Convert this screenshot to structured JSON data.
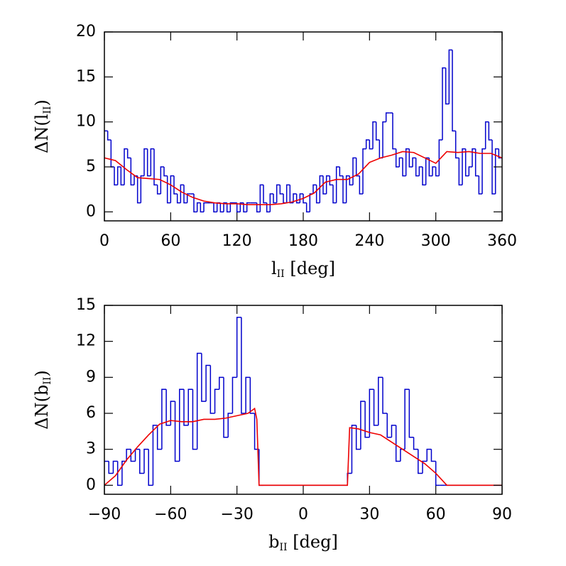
{
  "chart_data": [
    {
      "type": "histogram",
      "xlabel": {
        "main": "l",
        "sub": "II",
        "end": " [deg]"
      },
      "ylabel": {
        "main": "ΔN(l",
        "sub": "II",
        "end": ")"
      },
      "xlim": [
        0,
        360
      ],
      "ylim": [
        -1,
        20
      ],
      "xticks": [
        0,
        60,
        120,
        180,
        240,
        300,
        360
      ],
      "yticks": [
        0,
        5,
        10,
        15,
        20
      ],
      "bins": [
        0,
        3,
        6,
        9,
        12,
        15,
        18,
        21,
        24,
        27,
        30,
        33,
        36,
        39,
        42,
        45,
        48,
        51,
        54,
        57,
        60,
        63,
        66,
        69,
        72,
        75,
        78,
        81,
        84,
        87,
        90,
        93,
        96,
        99,
        102,
        105,
        108,
        111,
        114,
        117,
        120,
        123,
        126,
        129,
        132,
        135,
        138,
        141,
        144,
        147,
        150,
        153,
        156,
        159,
        162,
        165,
        168,
        171,
        174,
        177,
        180,
        183,
        186,
        189,
        192,
        195,
        198,
        201,
        204,
        207,
        210,
        213,
        216,
        219,
        222,
        225,
        228,
        231,
        234,
        237,
        240,
        243,
        246,
        249,
        252,
        255,
        258,
        261,
        264,
        267,
        270,
        273,
        276,
        279,
        282,
        285,
        288,
        291,
        294,
        297,
        300,
        303,
        306,
        309,
        312,
        315,
        318,
        321,
        324,
        327,
        330,
        333,
        336,
        339,
        342,
        345,
        348,
        351,
        354,
        357,
        360
      ],
      "values": [
        9,
        8,
        5,
        3,
        5,
        3,
        7,
        6,
        3,
        4,
        1,
        4,
        7,
        4,
        7,
        3,
        2,
        5,
        4,
        1,
        4,
        2,
        1,
        3,
        1,
        2,
        2,
        0,
        1,
        0,
        1,
        1,
        1,
        0,
        1,
        0,
        1,
        0,
        1,
        1,
        0,
        1,
        0,
        1,
        1,
        1,
        0,
        3,
        1,
        0,
        2,
        1,
        3,
        2,
        1,
        3,
        1,
        2,
        1,
        2,
        1,
        0,
        2,
        3,
        1,
        4,
        2,
        4,
        3,
        1,
        5,
        4,
        1,
        4,
        3,
        6,
        4,
        2,
        7,
        8,
        7,
        10,
        8,
        6,
        10,
        11,
        11,
        7,
        5,
        6,
        4,
        7,
        5,
        6,
        4,
        5,
        3,
        6,
        4,
        5,
        4,
        8,
        16,
        12,
        18,
        9,
        6,
        3,
        7,
        4,
        5,
        7,
        4,
        2,
        7,
        10,
        8,
        2,
        7,
        6
      ],
      "color": "#0000cc",
      "line": {
        "color": "#ee0000",
        "x": [
          0,
          10,
          20,
          30,
          40,
          50,
          60,
          70,
          80,
          90,
          100,
          110,
          120,
          130,
          140,
          150,
          160,
          170,
          180,
          190,
          200,
          210,
          220,
          230,
          240,
          250,
          260,
          270,
          280,
          290,
          300,
          310,
          320,
          330,
          340,
          350,
          360
        ],
        "values": [
          6,
          5.7,
          4.7,
          3.8,
          3.7,
          3.6,
          3.0,
          2.2,
          1.6,
          1.2,
          1.0,
          0.9,
          0.9,
          0.8,
          0.8,
          0.8,
          0.9,
          1.1,
          1.5,
          2.1,
          3.3,
          3.6,
          3.6,
          4.2,
          5.5,
          6.0,
          6.3,
          6.7,
          6.6,
          6.0,
          5.4,
          6.7,
          6.6,
          6.7,
          6.5,
          6.5,
          6.0
        ]
      }
    },
    {
      "type": "histogram",
      "xlabel": {
        "main": "b",
        "sub": "II",
        "end": " [deg]"
      },
      "ylabel": {
        "main": "ΔN(b",
        "sub": "II",
        "end": ")"
      },
      "xlim": [
        -90,
        90
      ],
      "ylim": [
        -0.75,
        15
      ],
      "xticks": [
        {
          "value": -90,
          "label": "−90"
        },
        {
          "value": -60,
          "label": "−60"
        },
        {
          "value": -30,
          "label": "−30"
        },
        0,
        30,
        60,
        90
      ],
      "yticks": [
        0,
        3,
        6,
        9,
        12,
        15
      ],
      "bins": [
        -90,
        -88,
        -86,
        -84,
        -82,
        -80,
        -78,
        -76,
        -74,
        -72,
        -70,
        -68,
        -66,
        -64,
        -62,
        -60,
        -58,
        -56,
        -54,
        -52,
        -50,
        -48,
        -46,
        -44,
        -42,
        -40,
        -38,
        -36,
        -34,
        -32,
        -30,
        -28,
        -26,
        -24,
        -22,
        -20,
        -18,
        -16,
        -14,
        -12,
        -10,
        -8,
        -6,
        -4,
        -2,
        0,
        2,
        4,
        6,
        8,
        10,
        12,
        14,
        16,
        18,
        20,
        22,
        24,
        26,
        28,
        30,
        32,
        34,
        36,
        38,
        40,
        42,
        44,
        46,
        48,
        50,
        52,
        54,
        56,
        58,
        60,
        62,
        64,
        66,
        68,
        70,
        72,
        74,
        76,
        78,
        80,
        82,
        84,
        86,
        88,
        90
      ],
      "values": [
        2,
        1,
        2,
        0,
        2,
        3,
        2,
        3,
        1,
        3,
        0,
        5,
        3,
        8,
        5,
        7,
        2,
        8,
        5,
        8,
        3,
        11,
        7,
        10,
        6,
        8,
        9,
        4,
        6,
        9,
        14,
        6,
        9,
        6,
        3,
        0,
        0,
        0,
        0,
        0,
        0,
        0,
        0,
        0,
        0,
        0,
        0,
        0,
        0,
        0,
        0,
        0,
        0,
        0,
        0,
        1,
        5,
        3,
        7,
        4,
        8,
        5,
        9,
        6,
        4,
        5,
        2,
        3,
        8,
        4,
        3,
        1,
        2,
        3,
        2,
        0,
        0,
        0,
        0,
        0,
        0,
        0,
        0,
        0,
        0,
        0,
        0,
        0,
        0,
        0
      ],
      "color": "#0000cc",
      "line": {
        "color": "#ee0000",
        "x": [
          -90,
          -85,
          -80,
          -75,
          -70,
          -65,
          -60,
          -55,
          -50,
          -45,
          -40,
          -35,
          -30,
          -25,
          -22,
          -21,
          -20,
          20,
          21,
          25,
          30,
          35,
          40,
          45,
          50,
          55,
          60,
          65,
          90
        ],
        "values": [
          0,
          0.8,
          2.1,
          3.2,
          4.2,
          5.1,
          5.4,
          5.3,
          5.3,
          5.5,
          5.5,
          5.6,
          5.8,
          6.0,
          6.4,
          5.5,
          0,
          0,
          4.8,
          4.7,
          4.4,
          4.2,
          3.6,
          3.0,
          2.4,
          1.8,
          1.0,
          0,
          0
        ]
      }
    }
  ]
}
